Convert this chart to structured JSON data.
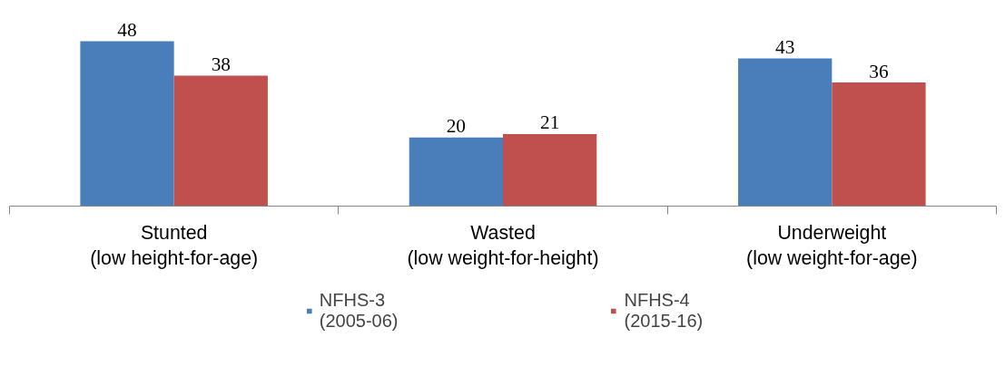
{
  "chart_data": {
    "type": "bar",
    "categories": [
      "Stunted\n(low height-for-age)",
      "Wasted\n(low weight-for-height)",
      "Underweight\n(low weight-for-age)"
    ],
    "series": [
      {
        "name": "NFHS-3\n(2005-06)",
        "color": "#4a7ebb",
        "values": [
          48,
          20,
          43
        ]
      },
      {
        "name": "NFHS-4\n(2015-16)",
        "color": "#c0504d",
        "values": [
          38,
          21,
          36
        ]
      }
    ],
    "data_labels": true,
    "grid": false,
    "legend": "bottom"
  }
}
